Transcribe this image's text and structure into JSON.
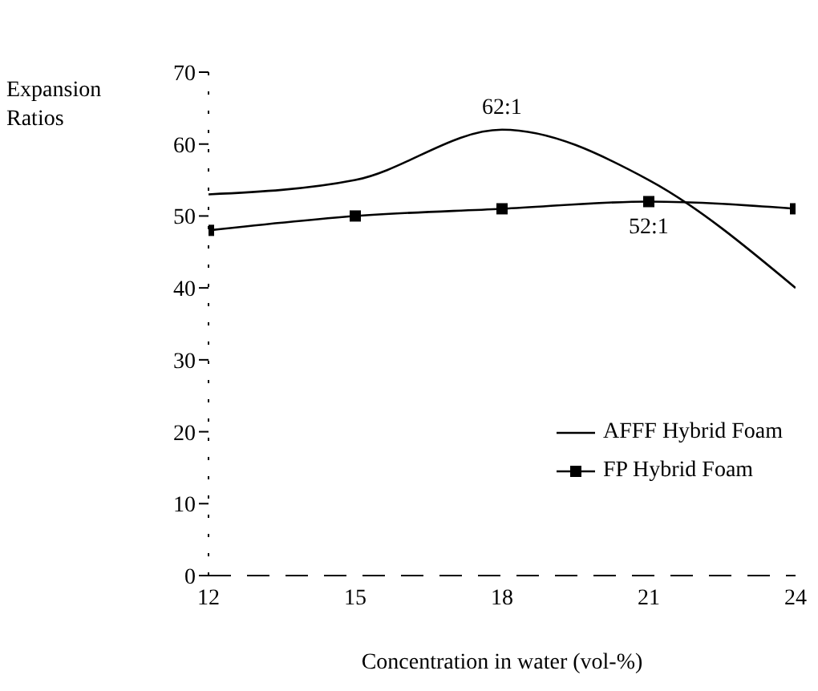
{
  "chart_data": {
    "type": "line",
    "xlabel": "Concentration in water (vol-%)",
    "ylabel": "Expansion Ratios",
    "x": [
      12,
      15,
      18,
      21,
      24
    ],
    "series": [
      {
        "name": "AFFF Hybrid Foam",
        "color": "#000000",
        "values": [
          53,
          55,
          62,
          55,
          40
        ],
        "marker": "none"
      },
      {
        "name": "FP Hybrid Foam",
        "color": "#000000",
        "values": [
          48,
          50,
          51,
          52,
          51
        ],
        "marker": "square"
      }
    ],
    "xlim": [
      12,
      24
    ],
    "xticks": [
      12,
      15,
      18,
      21,
      24
    ],
    "ylim": [
      0,
      70
    ],
    "yticks": [
      0,
      10,
      20,
      30,
      40,
      50,
      60,
      70
    ],
    "annotations": [
      {
        "text": "62:1",
        "x": 18,
        "y": 62
      },
      {
        "text": "52:1",
        "x": 21,
        "y": 52
      }
    ],
    "legend": "right",
    "grid": false
  }
}
